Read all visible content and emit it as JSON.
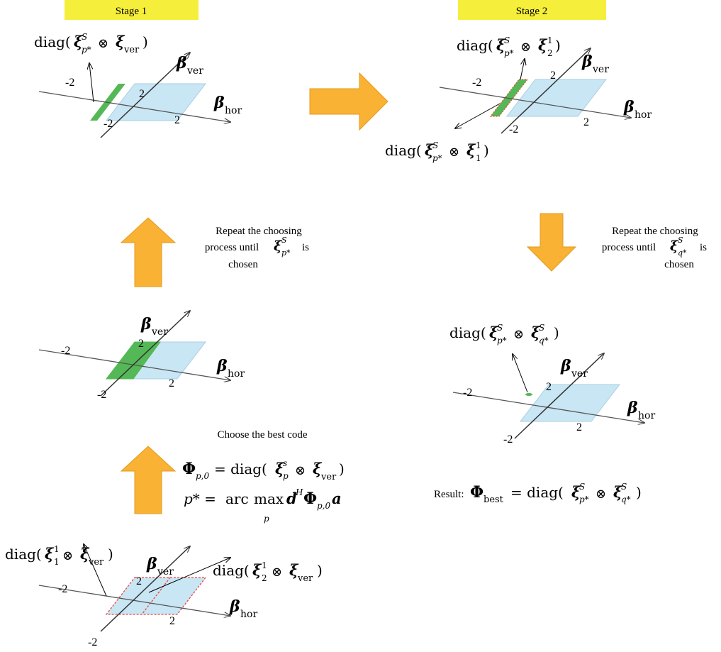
{
  "stages": {
    "stage1_label": "Stage 1",
    "stage2_label": "Stage 2",
    "label_color": "#f5ee3a"
  },
  "colors": {
    "plane_fill": "#c9e6f4",
    "plane_stroke": "#a9cfe2",
    "highlight_green": "#55b856",
    "dashed_red": "#e8483b",
    "arrow_orange": "#f9b233",
    "arrow_orange_stroke": "#e39b1e",
    "axis": "#333333"
  },
  "axes": {
    "ver": "ver",
    "hor": "hor",
    "tick_pos": "2",
    "tick_neg": "-2"
  },
  "stage1": {
    "annot_diag": "diag(",
    "annot_close": ")",
    "annot_sup": "S",
    "annot_sub": "p*",
    "annot_op": "⊗",
    "annot_vec_sub": "ver"
  },
  "stage2": {
    "annot_top_sub2": "2",
    "annot_top_sup1": "1",
    "annot_bottom_sub1": "1",
    "annot_bottom_sup1": "1"
  },
  "repeat_left": {
    "line1": "Repeat the choosing",
    "line2": "process until",
    "line2_end": "is",
    "line3": "chosen",
    "sym_sup": "S",
    "sym_sub": "p*"
  },
  "repeat_right": {
    "line1": "Repeat the choosing",
    "line2": "process until",
    "line2_end": "is",
    "line3": "chosen",
    "sym_sup": "S",
    "sym_sub": "q*"
  },
  "choose": {
    "title": "Choose the best code",
    "eq1_lhs_sub": "p,0",
    "eq1_rhs": "= diag(",
    "eq1_sup": "s",
    "eq1_sub": "p",
    "eq1_close": ")",
    "eq2_lhs": "p* =",
    "eq2_arc": "arc",
    "eq2_max": "max",
    "eq2_max_sub": "p",
    "eq2_sup_h": "H",
    "eq2_phi_sub": "p,0"
  },
  "result": {
    "label": "Result:",
    "phi_sub": "best",
    "eq": "= diag(",
    "sup": "S",
    "sub_p": "p*",
    "sub_q": "q*",
    "close": ")"
  },
  "bottom_left": {
    "annot_left_sup": "1",
    "annot_left_sub": "1",
    "annot_right_sup": "1",
    "annot_right_sub": "2"
  },
  "result_panel": {
    "annot_sup": "S",
    "annot_sub_p": "p*",
    "annot_sub_q": "q*"
  }
}
